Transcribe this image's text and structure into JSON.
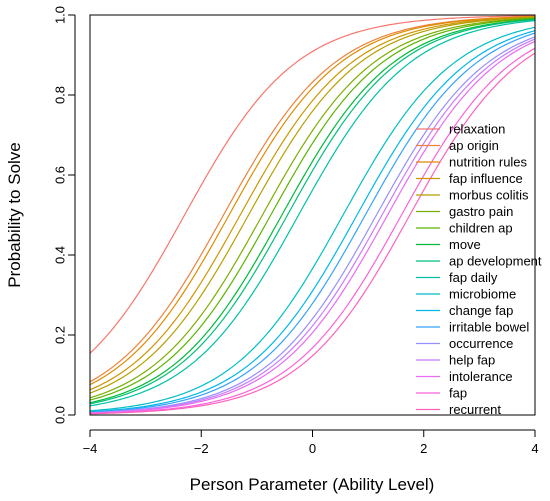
{
  "chart_data": {
    "type": "line",
    "xlabel": "Person Parameter (Ability Level)",
    "ylabel": "Probability to Solve",
    "xlim": [
      -4,
      4
    ],
    "ylim": [
      0,
      1
    ],
    "xticks": [
      -4,
      -2,
      0,
      2,
      4
    ],
    "yticks": [
      0.0,
      0.2,
      0.4,
      0.6,
      0.8,
      1.0
    ],
    "ytick_labels": [
      "0.0",
      "0.2",
      "0.4",
      "0.6",
      "0.8",
      "1.0"
    ],
    "xtick_labels": [
      "−4",
      "−2",
      "0",
      "2",
      "4"
    ],
    "model": "logistic: P = 1 / (1 + exp(-(x - difficulty)))",
    "legend_position": "right",
    "series": [
      {
        "name": "relaxation",
        "difficulty": -2.3,
        "color": "#F8766D"
      },
      {
        "name": "ap origin",
        "difficulty": -1.6,
        "color": "#EC823C"
      },
      {
        "name": "nutrition rules",
        "difficulty": -1.5,
        "color": "#DE8C00"
      },
      {
        "name": "fap influence",
        "difficulty": -1.3,
        "color": "#CD9600"
      },
      {
        "name": "morbus colitis",
        "difficulty": -1.15,
        "color": "#B79F00"
      },
      {
        "name": "gastro pain",
        "difficulty": -0.9,
        "color": "#7CAE00"
      },
      {
        "name": "children ap",
        "difficulty": -0.75,
        "color": "#5BB300"
      },
      {
        "name": "move",
        "difficulty": -0.55,
        "color": "#00BA38"
      },
      {
        "name": "ap development",
        "difficulty": -0.45,
        "color": "#00BF7D"
      },
      {
        "name": "fap daily",
        "difficulty": -0.25,
        "color": "#00C1A3"
      },
      {
        "name": "microbiome",
        "difficulty": 0.55,
        "color": "#00BFC4"
      },
      {
        "name": "change fap",
        "difficulty": 0.8,
        "color": "#00B8E7"
      },
      {
        "name": "irritable bowel",
        "difficulty": 0.95,
        "color": "#35A2FF"
      },
      {
        "name": "occurrence",
        "difficulty": 1.15,
        "color": "#9590FF"
      },
      {
        "name": "help fap",
        "difficulty": 1.25,
        "color": "#C77CFF"
      },
      {
        "name": "intolerance",
        "difficulty": 1.35,
        "color": "#E76BF3"
      },
      {
        "name": "fap",
        "difficulty": 1.6,
        "color": "#FA62DB"
      },
      {
        "name": "recurrent",
        "difficulty": 1.75,
        "color": "#FF62BC"
      }
    ]
  }
}
